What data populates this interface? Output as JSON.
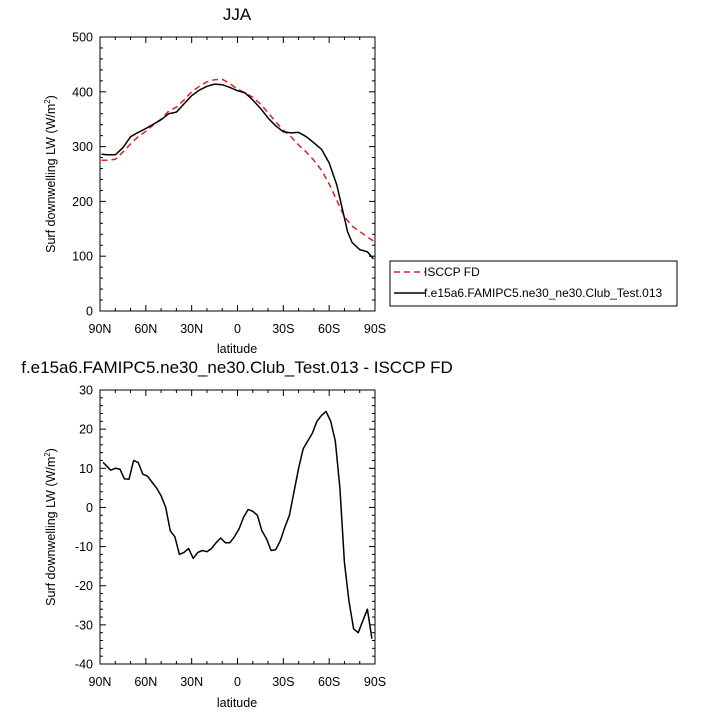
{
  "chart_data": [
    {
      "type": "line",
      "title": "JJA",
      "xlabel": "latitude",
      "ylabel": "Surf downwelling LW (W/m",
      "ylabel_sup": "2",
      "ylabel_tail": ")",
      "xlim": [
        90,
        -90
      ],
      "ylim": [
        0,
        500
      ],
      "x_ticks": [
        90,
        60,
        30,
        0,
        -30,
        -60,
        -90
      ],
      "x_tick_labels": [
        "90N",
        "60N",
        "30N",
        "0",
        "30S",
        "60S",
        "90S"
      ],
      "y_ticks": [
        0,
        100,
        200,
        300,
        400,
        500
      ],
      "y_tick_labels": [
        "0",
        "100",
        "200",
        "300",
        "400",
        "500"
      ],
      "legend_position": "right",
      "series": [
        {
          "name": "ISCCP FD",
          "color": "#e0201b",
          "dash": "dashed",
          "x": [
            89,
            85,
            80,
            75,
            70,
            65,
            60,
            55,
            50,
            45,
            40,
            35,
            30,
            25,
            20,
            15,
            10,
            5,
            0,
            -5,
            -10,
            -15,
            -20,
            -25,
            -30,
            -35,
            -40,
            -45,
            -50,
            -55,
            -60,
            -65,
            -70,
            -75,
            -80,
            -85,
            -89
          ],
          "y": [
            275,
            275,
            277,
            290,
            305,
            318,
            328,
            340,
            350,
            365,
            372,
            385,
            400,
            410,
            418,
            422,
            423,
            415,
            405,
            398,
            390,
            378,
            362,
            345,
            330,
            318,
            303,
            290,
            275,
            257,
            232,
            202,
            172,
            155,
            145,
            135,
            128
          ]
        },
        {
          "name": "f.e15a6.FAMIPC5.ne30_ne30.Club_Test.013",
          "color": "#000000",
          "dash": "solid",
          "x": [
            89,
            85,
            80,
            75,
            70,
            65,
            60,
            55,
            50,
            45,
            40,
            35,
            30,
            25,
            20,
            15,
            10,
            5,
            0,
            -5,
            -10,
            -15,
            -20,
            -25,
            -30,
            -35,
            -40,
            -45,
            -50,
            -55,
            -60,
            -65,
            -70,
            -72,
            -75,
            -80,
            -85,
            -89
          ],
          "y": [
            286,
            285,
            285,
            298,
            318,
            326,
            333,
            341,
            349,
            360,
            363,
            378,
            393,
            403,
            410,
            414,
            413,
            408,
            402,
            398,
            385,
            370,
            352,
            338,
            327,
            325,
            326,
            318,
            307,
            295,
            270,
            230,
            170,
            145,
            125,
            112,
            108,
            95
          ]
        }
      ]
    },
    {
      "type": "line",
      "title": "f.e15a6.FAMIPC5.ne30_ne30.Club_Test.013 - ISCCP FD",
      "xlabel": "latitude",
      "ylabel": "Surf downwelling LW (W/m",
      "ylabel_sup": "2",
      "ylabel_tail": ")",
      "xlim": [
        90,
        -90
      ],
      "ylim": [
        -40,
        30
      ],
      "x_ticks": [
        90,
        60,
        30,
        0,
        -30,
        -60,
        -90
      ],
      "x_tick_labels": [
        "90N",
        "60N",
        "30N",
        "0",
        "30S",
        "60S",
        "90S"
      ],
      "y_ticks": [
        -40,
        -30,
        -20,
        -10,
        0,
        10,
        20,
        30
      ],
      "y_tick_labels": [
        "-40",
        "-30",
        "-20",
        "-10",
        "0",
        "10",
        "20",
        "30"
      ],
      "series": [
        {
          "color": "#000000",
          "dash": "solid",
          "x": [
            88,
            83,
            80,
            77,
            74,
            71,
            68,
            65,
            62,
            59,
            56,
            53,
            50,
            47,
            44,
            41,
            38,
            35,
            32,
            29,
            26,
            23,
            20,
            17,
            14,
            11,
            8,
            5,
            2,
            -1,
            -4,
            -7,
            -10,
            -13,
            -16,
            -19,
            -22,
            -25,
            -28,
            -31,
            -34,
            -37,
            -40,
            -43,
            -46,
            -49,
            -52,
            -55,
            -58,
            -61,
            -64,
            -67,
            -70,
            -73,
            -76,
            -79,
            -82,
            -85,
            -88
          ],
          "y": [
            11.5,
            9.5,
            10,
            9.8,
            7.3,
            7.2,
            12,
            11.5,
            8.5,
            8,
            6.5,
            5,
            3,
            0,
            -6,
            -7.5,
            -12,
            -11.5,
            -10.5,
            -13,
            -11.5,
            -11,
            -11.3,
            -10.5,
            -9,
            -7.8,
            -9,
            -9,
            -7.5,
            -5.5,
            -2.5,
            -0.5,
            -1,
            -2,
            -6,
            -8,
            -11,
            -10.8,
            -8.5,
            -5,
            -2,
            4,
            10,
            15,
            17,
            19,
            22,
            23.5,
            24.5,
            22,
            17,
            5,
            -14,
            -24,
            -31,
            -32,
            -29,
            -26,
            -33.5
          ]
        }
      ]
    }
  ]
}
